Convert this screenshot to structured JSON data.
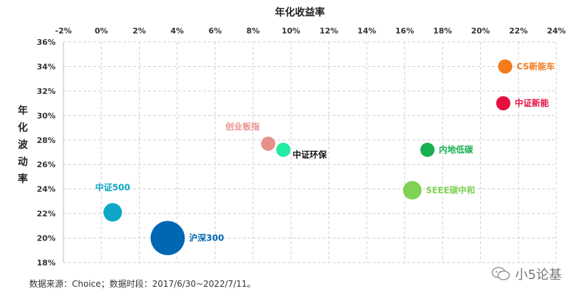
{
  "chart_data": {
    "type": "scatter",
    "title": "年化收益率",
    "xlabel": "年化收益率",
    "ylabel": "年化波动率",
    "xlim": [
      -0.02,
      0.24
    ],
    "ylim": [
      0.18,
      0.36
    ],
    "xticks": [
      "-2%",
      "0%",
      "2%",
      "4%",
      "6%",
      "8%",
      "10%",
      "12%",
      "14%",
      "16%",
      "18%",
      "20%",
      "22%",
      "24%"
    ],
    "yticks": [
      "36%",
      "34%",
      "32%",
      "30%",
      "28%",
      "26%",
      "24%",
      "22%",
      "20%",
      "18%"
    ],
    "grid": true,
    "points": [
      {
        "label": "CS新能车",
        "x": 0.213,
        "y": 0.34,
        "size": "small",
        "color": "#F27C1C"
      },
      {
        "label": "中证新能",
        "x": 0.212,
        "y": 0.31,
        "size": "small",
        "color": "#E3103F"
      },
      {
        "label": "创业板指",
        "x": 0.088,
        "y": 0.277,
        "size": "small",
        "color": "#E8908C"
      },
      {
        "label": "中证环保",
        "x": 0.096,
        "y": 0.272,
        "size": "small",
        "color": "#22EBA2"
      },
      {
        "label": "内地低碳",
        "x": 0.172,
        "y": 0.272,
        "size": "small",
        "color": "#16B050"
      },
      {
        "label": "SEEE碳中和",
        "x": 0.164,
        "y": 0.239,
        "size": "medium",
        "color": "#7FD253"
      },
      {
        "label": "中证500",
        "x": 0.006,
        "y": 0.221,
        "size": "medium",
        "color": "#0EA8C6"
      },
      {
        "label": "沪深300",
        "x": 0.035,
        "y": 0.2,
        "size": "large",
        "color": "#0067B4"
      }
    ]
  },
  "source_note": "数据来源：Choice；数据时段：2017/6/30~2022/7/11。",
  "watermark": {
    "text": "小5论基",
    "icon": "wechat-icon"
  }
}
